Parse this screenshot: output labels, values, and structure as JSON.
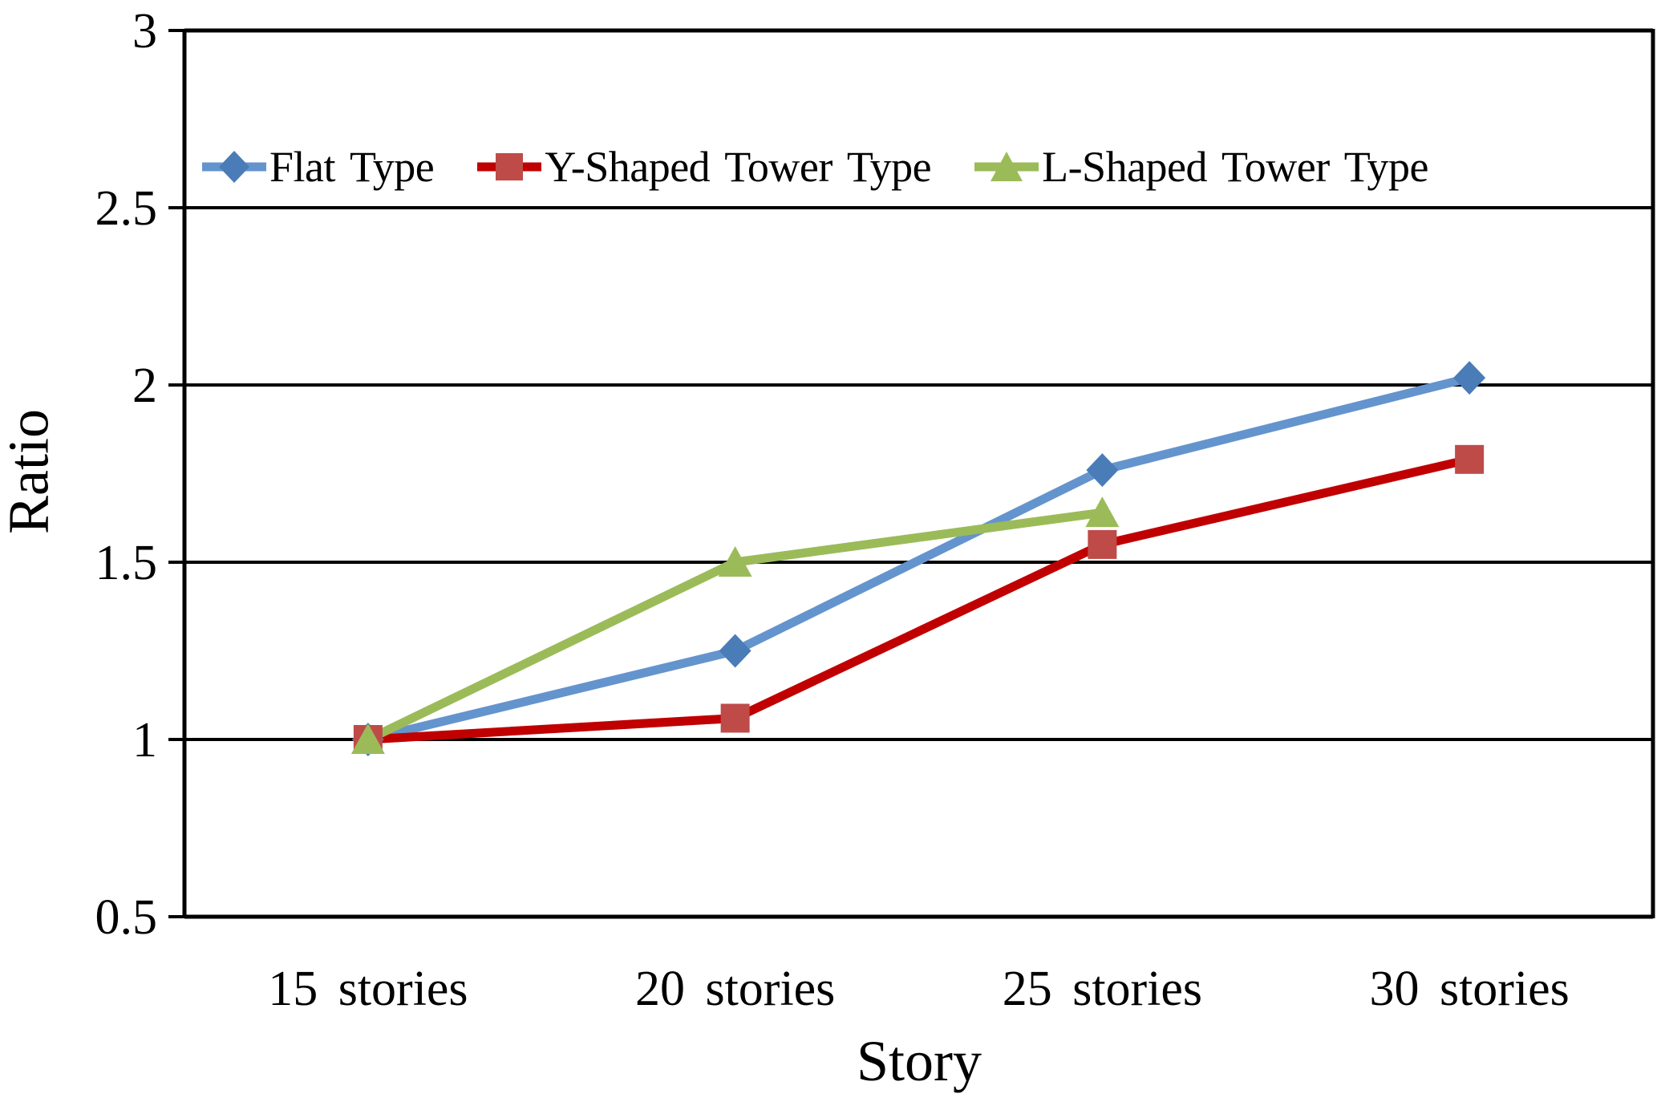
{
  "chart_data": {
    "type": "line",
    "title": "",
    "xlabel": "Story",
    "ylabel": "Ratio",
    "categories": [
      "15 stories",
      "20 stories",
      "25 stories",
      "30 stories"
    ],
    "series": [
      {
        "name": "Flat Type",
        "marker": "diamond",
        "line_color": "#6494CD",
        "marker_color": "#4A7CB8",
        "values": [
          1.0,
          1.25,
          1.76,
          2.02
        ]
      },
      {
        "name": "Y-Shaped Tower Type",
        "marker": "square",
        "line_color": "#C00000",
        "marker_color": "#BE4B48",
        "values": [
          1.0,
          1.06,
          1.55,
          1.79
        ]
      },
      {
        "name": "L-Shaped Tower Type",
        "marker": "triangle",
        "line_color": "#9BBB59",
        "marker_color": "#9BBB59",
        "values": [
          1.0,
          1.5,
          1.64,
          null
        ]
      }
    ],
    "ylim": [
      0.5,
      3.0
    ],
    "ytick_step": 0.5,
    "ytick_labels": [
      "0.5",
      "1",
      "1.5",
      "2",
      "2.5",
      "3"
    ],
    "grid": "horizontal",
    "legend_position": "top-inside",
    "axis_color": "#000000",
    "gridline_color": "#000000",
    "background_color": "#FFFFFF"
  }
}
